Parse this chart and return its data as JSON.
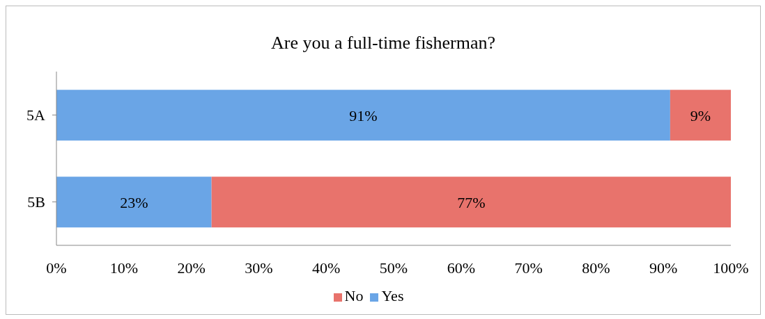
{
  "chart_data": {
    "type": "bar",
    "orientation": "horizontal",
    "stacked": true,
    "title": "Are you a full-time fisherman?",
    "categories": [
      "5A",
      "5B"
    ],
    "series": [
      {
        "name": "Yes",
        "color": "#6aa5e6",
        "values": [
          91,
          23
        ],
        "value_labels": [
          "91%",
          "23%"
        ]
      },
      {
        "name": "No",
        "color": "#e8736c",
        "values": [
          9,
          77
        ],
        "value_labels": [
          "9%",
          "77%"
        ]
      }
    ],
    "xlim": [
      0,
      100
    ],
    "xticks": [
      {
        "value": 0,
        "label": "0%"
      },
      {
        "value": 10,
        "label": "10%"
      },
      {
        "value": 20,
        "label": "20%"
      },
      {
        "value": 30,
        "label": "30%"
      },
      {
        "value": 40,
        "label": "40%"
      },
      {
        "value": 50,
        "label": "50%"
      },
      {
        "value": 60,
        "label": "60%"
      },
      {
        "value": 70,
        "label": "70%"
      },
      {
        "value": 80,
        "label": "80%"
      },
      {
        "value": 90,
        "label": "90%"
      },
      {
        "value": 100,
        "label": "100%"
      }
    ],
    "grid": false,
    "legend": "bottom"
  }
}
